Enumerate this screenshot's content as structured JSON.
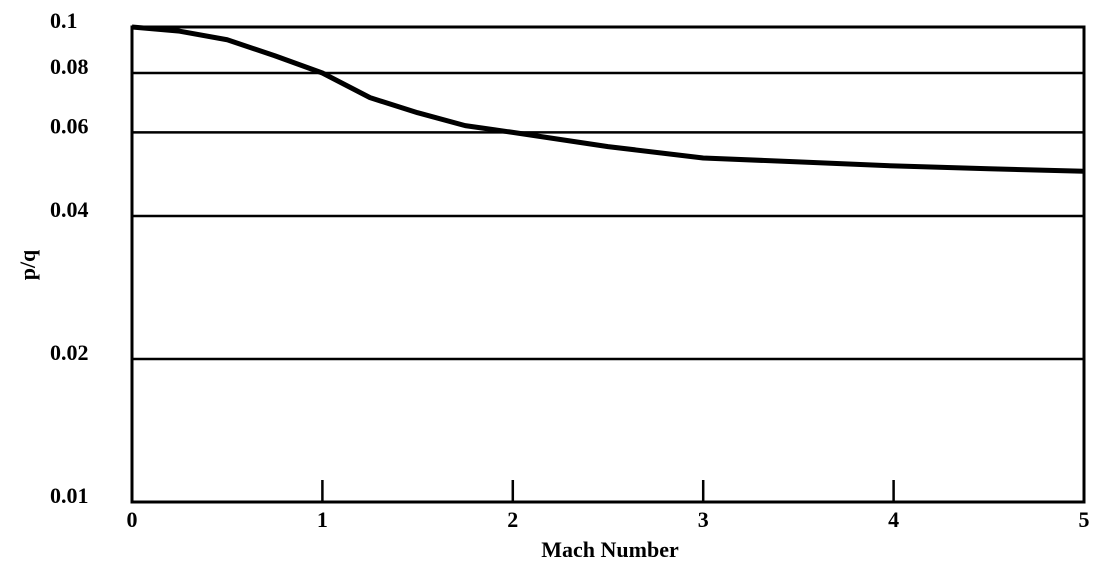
{
  "chart_data": {
    "type": "line",
    "x_label": "Mach Number",
    "y_label": "p/q",
    "x": [
      0,
      0.25,
      0.5,
      0.75,
      1,
      1.25,
      1.5,
      1.75,
      2,
      2.5,
      3,
      3.5,
      4,
      4.5,
      5
    ],
    "series": [
      {
        "color": "#000000",
        "values": [
          0.1,
          0.098,
          0.094,
          0.087,
          0.08,
          0.071,
          0.066,
          0.062,
          0.06,
          0.056,
          0.053,
          0.052,
          0.051,
          0.0503,
          0.0497
        ]
      }
    ],
    "xlim": [
      0,
      5
    ],
    "xticks": [
      0,
      1,
      2,
      3,
      4,
      5
    ],
    "ylim": [
      0.01,
      0.1
    ],
    "yticks": [
      0.01,
      0.02,
      0.04,
      0.06,
      0.08,
      0.1
    ],
    "y_log_scale": true,
    "grid": true
  }
}
